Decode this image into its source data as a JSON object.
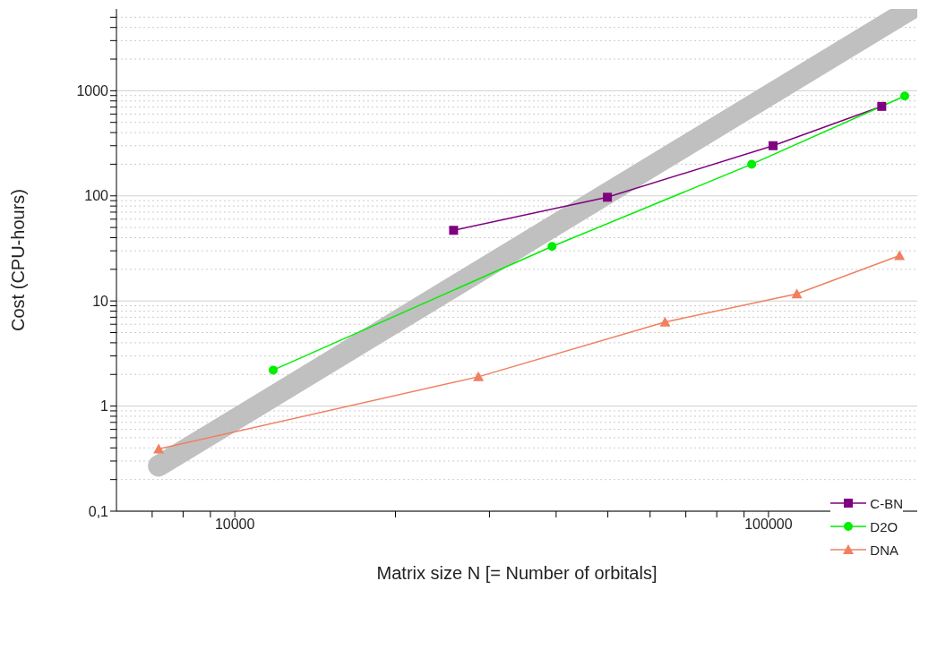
{
  "chart_data": {
    "type": "line",
    "xlabel": "Matrix size N [= Number of orbitals]",
    "ylabel": "Cost (CPU-hours)",
    "log": "xy",
    "grid": "y",
    "legend": "bottom right",
    "line_style": "solid",
    "xlim": [
      6000,
      190000
    ],
    "ylim": [
      0.1,
      6000
    ],
    "xticks": [
      {
        "value": 7000,
        "label": null
      },
      {
        "value": 8000,
        "label": null
      },
      {
        "value": 9000,
        "label": null
      },
      10000,
      {
        "value": 20000,
        "label": null
      },
      {
        "value": 30000,
        "label": null
      },
      {
        "value": 40000,
        "label": null
      },
      {
        "value": 50000,
        "label": null
      },
      {
        "value": 60000,
        "label": null
      },
      {
        "value": 70000,
        "label": null
      },
      {
        "value": 80000,
        "label": null
      },
      {
        "value": 90000,
        "label": null
      },
      100000
    ],
    "yticks": [
      {
        "value": 0.1,
        "label": "0,1"
      },
      {
        "value": 0.2,
        "label": null
      },
      {
        "value": 0.3,
        "label": null
      },
      {
        "value": 0.4,
        "label": null
      },
      {
        "value": 0.5,
        "label": null
      },
      {
        "value": 0.6,
        "label": null
      },
      {
        "value": 0.7,
        "label": null
      },
      {
        "value": 0.8,
        "label": null
      },
      {
        "value": 0.9,
        "label": null
      },
      1,
      {
        "value": 2,
        "label": null
      },
      {
        "value": 3,
        "label": null
      },
      {
        "value": 4,
        "label": null
      },
      {
        "value": 5,
        "label": null
      },
      {
        "value": 6,
        "label": null
      },
      {
        "value": 7,
        "label": null
      },
      {
        "value": 8,
        "label": null
      },
      {
        "value": 9,
        "label": null
      },
      10,
      {
        "value": 20,
        "label": null
      },
      {
        "value": 30,
        "label": null
      },
      {
        "value": 40,
        "label": null
      },
      {
        "value": 50,
        "label": null
      },
      {
        "value": 60,
        "label": null
      },
      {
        "value": 70,
        "label": null
      },
      {
        "value": 80,
        "label": null
      },
      {
        "value": 90,
        "label": null
      },
      100,
      {
        "value": 200,
        "label": null
      },
      {
        "value": 300,
        "label": null
      },
      {
        "value": 400,
        "label": null
      },
      {
        "value": 500,
        "label": null
      },
      {
        "value": 600,
        "label": null
      },
      {
        "value": 700,
        "label": null
      },
      {
        "value": 800,
        "label": null
      },
      {
        "value": 900,
        "label": null
      },
      1000,
      {
        "value": 2000,
        "label": null
      },
      {
        "value": 3000,
        "label": null
      },
      {
        "value": 4000,
        "label": null
      },
      {
        "value": 5000,
        "label": null
      }
    ],
    "series": [
      {
        "type": "line",
        "marker": "none",
        "color": "#c0c0c0",
        "x": [
          7200,
          185000
        ],
        "values": [
          0.27,
          6000
        ]
      },
      {
        "name": "C-BN",
        "marker": "square",
        "color": "#800080",
        "x": [
          25700,
          49900,
          102000,
          163000
        ],
        "values": [
          47,
          97,
          300,
          710
        ]
      },
      {
        "name": "D2O",
        "marker": "circle",
        "color": "#00ee00",
        "x": [
          11800,
          39300,
          93000,
          180000
        ],
        "values": [
          2.2,
          33,
          200,
          890
        ]
      },
      {
        "name": "DNA",
        "marker": "triangle",
        "color": "#f08060",
        "x": [
          7200,
          28600,
          64000,
          113000,
          176000
        ],
        "values": [
          0.39,
          1.9,
          6.3,
          11.7,
          27
        ]
      }
    ]
  }
}
